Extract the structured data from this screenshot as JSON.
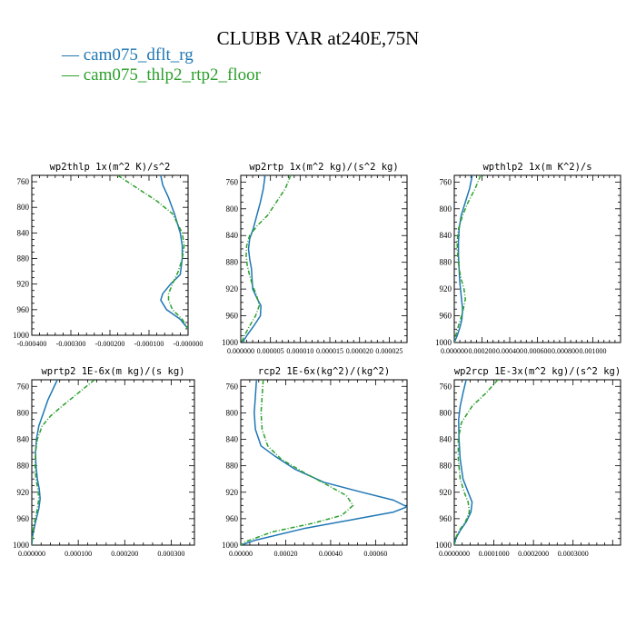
{
  "title": "CLUBB VAR at240E,75N",
  "legend": [
    {
      "label": "— cam075_dflt_rg",
      "color": "#1f77b4"
    },
    {
      "label": "— cam075_thlp2_rtp2_floor",
      "color": "#2ca02c"
    }
  ],
  "chart_data": [
    {
      "type": "line",
      "title": "wp2thlp  1x(m^2 K)/s^2",
      "xlim": [
        -0.0004,
        0.0
      ],
      "ylim": [
        1000,
        750
      ],
      "yticks": [
        760,
        800,
        840,
        880,
        920,
        960,
        1000
      ],
      "xticks": [
        -0.0004,
        -0.0003,
        -0.0002,
        -0.0001,
        0.0
      ],
      "xtick_labels": [
        "-0.000400",
        "-0.000300",
        "-0.000200",
        "-0.000100",
        "-0.000000"
      ],
      "series": [
        {
          "name": "cam075_dflt_rg",
          "color": "#1f77b4",
          "dashed": false,
          "x": [
            -7e-05,
            -6.5e-05,
            -5e-05,
            -3.5e-05,
            -2e-05,
            -1.5e-05,
            -1.5e-05,
            -2e-05,
            -4.5e-05,
            -6.5e-05,
            -7e-05,
            -5.5e-05,
            -2e-05,
            0.0
          ],
          "y": [
            750,
            765,
            785,
            810,
            840,
            860,
            880,
            905,
            920,
            935,
            945,
            960,
            975,
            990
          ]
        },
        {
          "name": "cam075_thlp2_rtp2_floor",
          "color": "#2ca02c",
          "dashed": true,
          "x": [
            -0.00018,
            -0.00013,
            -8e-05,
            -4e-05,
            -1.5e-05,
            -1e-05,
            -1.5e-05,
            -2.5e-05,
            -4e-05,
            -5e-05,
            -5e-05,
            -4e-05,
            -1.5e-05,
            0.0
          ],
          "y": [
            750,
            770,
            790,
            810,
            840,
            860,
            880,
            900,
            920,
            935,
            945,
            960,
            975,
            990
          ]
        }
      ]
    },
    {
      "type": "line",
      "title": "wp2rtp  1x(m^2 kg)/(s^2 kg)",
      "xlim": [
        0.0,
        2.8e-05
      ],
      "ylim": [
        1000,
        750
      ],
      "yticks": [
        760,
        800,
        840,
        880,
        920,
        960,
        1000
      ],
      "xticks": [
        0.0,
        5e-06,
        1e-05,
        1.5e-05,
        2e-05,
        2.5e-05
      ],
      "xtick_labels": [
        "0.000000",
        "0.000005",
        "0.000010",
        "0.000015",
        "0.000020",
        "0.000025"
      ],
      "series": [
        {
          "name": "cam075_dflt_rg",
          "color": "#1f77b4",
          "dashed": false,
          "x": [
            4.1e-06,
            3.8e-06,
            3.3e-06,
            2.7e-06,
            2.1e-06,
            1.5e-06,
            1.3e-06,
            1.5e-06,
            1.8e-06,
            1.9e-06,
            2e-06,
            2.8e-06,
            3.4e-06,
            3.3e-06,
            2.2e-06,
            1e-06,
            3e-07
          ],
          "y": [
            750,
            770,
            790,
            810,
            830,
            845,
            860,
            875,
            890,
            905,
            920,
            935,
            945,
            960,
            975,
            990,
            1000
          ]
        },
        {
          "name": "cam075_thlp2_rtp2_floor",
          "color": "#2ca02c",
          "dashed": true,
          "x": [
            8.4e-06,
            7.5e-06,
            6e-06,
            4.5e-06,
            2.8e-06,
            1.5e-06,
            1e-06,
            9e-07,
            1.1e-06,
            1.5e-06,
            2e-06,
            2.7e-06,
            3.1e-06,
            2.5e-06,
            1.5e-06,
            6e-07,
            1e-07
          ],
          "y": [
            750,
            770,
            790,
            810,
            825,
            840,
            855,
            870,
            885,
            900,
            915,
            930,
            945,
            960,
            975,
            990,
            1000
          ]
        }
      ]
    },
    {
      "type": "line",
      "title": "wpthlp2  1x(m K^2)/s",
      "xlim": [
        0.0,
        0.0012
      ],
      "ylim": [
        1000,
        750
      ],
      "yticks": [
        760,
        800,
        840,
        880,
        920,
        960,
        1000
      ],
      "xticks": [
        0.0,
        0.0002,
        0.0004,
        0.0006,
        0.0008,
        0.001
      ],
      "xtick_labels": [
        "0.000000",
        "0.000200",
        "0.000400",
        "0.000600",
        "0.000800",
        "0.001000"
      ],
      "series": [
        {
          "name": "cam075_dflt_rg",
          "color": "#1f77b4",
          "dashed": false,
          "x": [
            0.00013,
            0.00011,
            8e-05,
            5e-05,
            3.5e-05,
            3e-05,
            3e-05,
            3.5e-05,
            4e-05,
            5e-05,
            6e-05,
            5.5e-05,
            4e-05,
            2e-05,
            0.0
          ],
          "y": [
            750,
            770,
            790,
            810,
            830,
            850,
            870,
            890,
            910,
            930,
            950,
            965,
            978,
            990,
            1000
          ]
        },
        {
          "name": "cam075_thlp2_rtp2_floor",
          "color": "#2ca02c",
          "dashed": true,
          "x": [
            0.00019,
            0.00015,
            0.0001,
            6e-05,
            3e-05,
            2e-05,
            2.5e-05,
            3.5e-05,
            5e-05,
            7e-05,
            8e-05,
            6e-05,
            3e-05,
            1e-05,
            0.0
          ],
          "y": [
            750,
            770,
            790,
            810,
            830,
            850,
            870,
            890,
            905,
            920,
            935,
            955,
            975,
            990,
            1000
          ]
        }
      ]
    },
    {
      "type": "line",
      "title": "wprtp2  1E-6x(m kg)/(s kg)",
      "xlim": [
        0.0,
        0.00035
      ],
      "ylim": [
        1000,
        750
      ],
      "yticks": [
        760,
        800,
        840,
        880,
        920,
        960,
        1000
      ],
      "xticks": [
        0.0,
        0.0001,
        0.0002,
        0.0003
      ],
      "xtick_labels": [
        "0.000000",
        "0.000100",
        "0.000200",
        "0.000300"
      ],
      "series": [
        {
          "name": "cam075_dflt_rg",
          "color": "#1f77b4",
          "dashed": false,
          "x": [
            5.5e-05,
            4.5e-05,
            3.5e-05,
            2.5e-05,
            1.5e-05,
            1e-05,
            8e-06,
            9e-06,
            1.2e-05,
            1.6e-05,
            1.8e-05,
            1.5e-05,
            8e-06,
            2e-06,
            0.0
          ],
          "y": [
            750,
            765,
            780,
            800,
            820,
            840,
            860,
            880,
            900,
            915,
            930,
            945,
            965,
            985,
            1000
          ]
        },
        {
          "name": "cam075_thlp2_rtp2_floor",
          "color": "#2ca02c",
          "dashed": true,
          "x": [
            0.000135,
            0.0001,
            6.5e-05,
            4e-05,
            2.2e-05,
            1.2e-05,
            8e-06,
            7e-06,
            9e-06,
            1.3e-05,
            1.5e-05,
            1.2e-05,
            6e-06,
            1e-06,
            0.0
          ],
          "y": [
            750,
            770,
            790,
            805,
            820,
            840,
            860,
            880,
            900,
            915,
            930,
            945,
            965,
            985,
            1000
          ]
        }
      ]
    },
    {
      "type": "line",
      "title": "rcp2  1E-6x(kg^2)/(kg^2)",
      "xlim": [
        0.0,
        0.00074
      ],
      "ylim": [
        1000,
        750
      ],
      "yticks": [
        760,
        800,
        840,
        880,
        920,
        960,
        1000
      ],
      "xticks": [
        0.0,
        0.0002,
        0.0004,
        0.0006
      ],
      "xtick_labels": [
        "0.00000",
        "0.00020",
        "0.00040",
        "0.00060"
      ],
      "series": [
        {
          "name": "cam075_dflt_rg",
          "color": "#1f77b4",
          "dashed": false,
          "x": [
            7e-05,
            6.5e-05,
            6e-05,
            6.5e-05,
            9e-05,
            0.00015,
            0.00024,
            0.00037,
            0.00054,
            0.00068,
            0.00074,
            0.00068,
            0.00052,
            0.00028,
            6e-05,
            0.0
          ],
          "y": [
            750,
            775,
            800,
            825,
            850,
            865,
            885,
            905,
            920,
            932,
            942,
            950,
            960,
            975,
            993,
            1000
          ]
        },
        {
          "name": "cam075_thlp2_rtp2_floor",
          "color": "#2ca02c",
          "dashed": true,
          "x": [
            0.0001,
            9.5e-05,
            9e-05,
            9.5e-05,
            0.00012,
            0.00018,
            0.00028,
            0.00039,
            0.00047,
            0.0005,
            0.00045,
            0.00032,
            0.00014,
            2e-05,
            0.0
          ],
          "y": [
            750,
            775,
            800,
            825,
            850,
            870,
            890,
            910,
            925,
            940,
            955,
            967,
            980,
            995,
            1000
          ]
        }
      ]
    },
    {
      "type": "line",
      "title": "wp2rcp  1E-3x(m^2 kg)/(s^2 kg)",
      "xlim": [
        0.0,
        0.00042
      ],
      "ylim": [
        1000,
        750
      ],
      "yticks": [
        760,
        800,
        840,
        880,
        920,
        960,
        1000
      ],
      "xticks": [
        0.0,
        0.0001,
        0.0002,
        0.0003
      ],
      "xtick_labels": [
        "0.0000000",
        "0.0001000",
        "0.0002000",
        "0.0003000"
      ],
      "series": [
        {
          "name": "cam075_dflt_rg",
          "color": "#1f77b4",
          "dashed": false,
          "x": [
            3e-05,
            2.2e-05,
            1.5e-05,
            1.1e-05,
            1.2e-05,
            1.5e-05,
            2.2e-05,
            3.5e-05,
            4.5e-05,
            4.2e-05,
            3e-05,
            1.5e-05,
            4e-06,
            0.0
          ],
          "y": [
            750,
            770,
            790,
            810,
            840,
            870,
            900,
            920,
            935,
            950,
            965,
            978,
            990,
            1000
          ]
        },
        {
          "name": "cam075_thlp2_rtp2_floor",
          "color": "#2ca02c",
          "dashed": true,
          "x": [
            0.00011,
            8e-05,
            4.5e-05,
            1.8e-05,
            1e-05,
            1e-05,
            1.5e-05,
            2.5e-05,
            3.5e-05,
            3.8e-05,
            2.8e-05,
            1.2e-05,
            3e-06,
            0.0
          ],
          "y": [
            750,
            770,
            790,
            815,
            840,
            870,
            900,
            920,
            935,
            950,
            965,
            978,
            990,
            1000
          ]
        }
      ]
    }
  ]
}
